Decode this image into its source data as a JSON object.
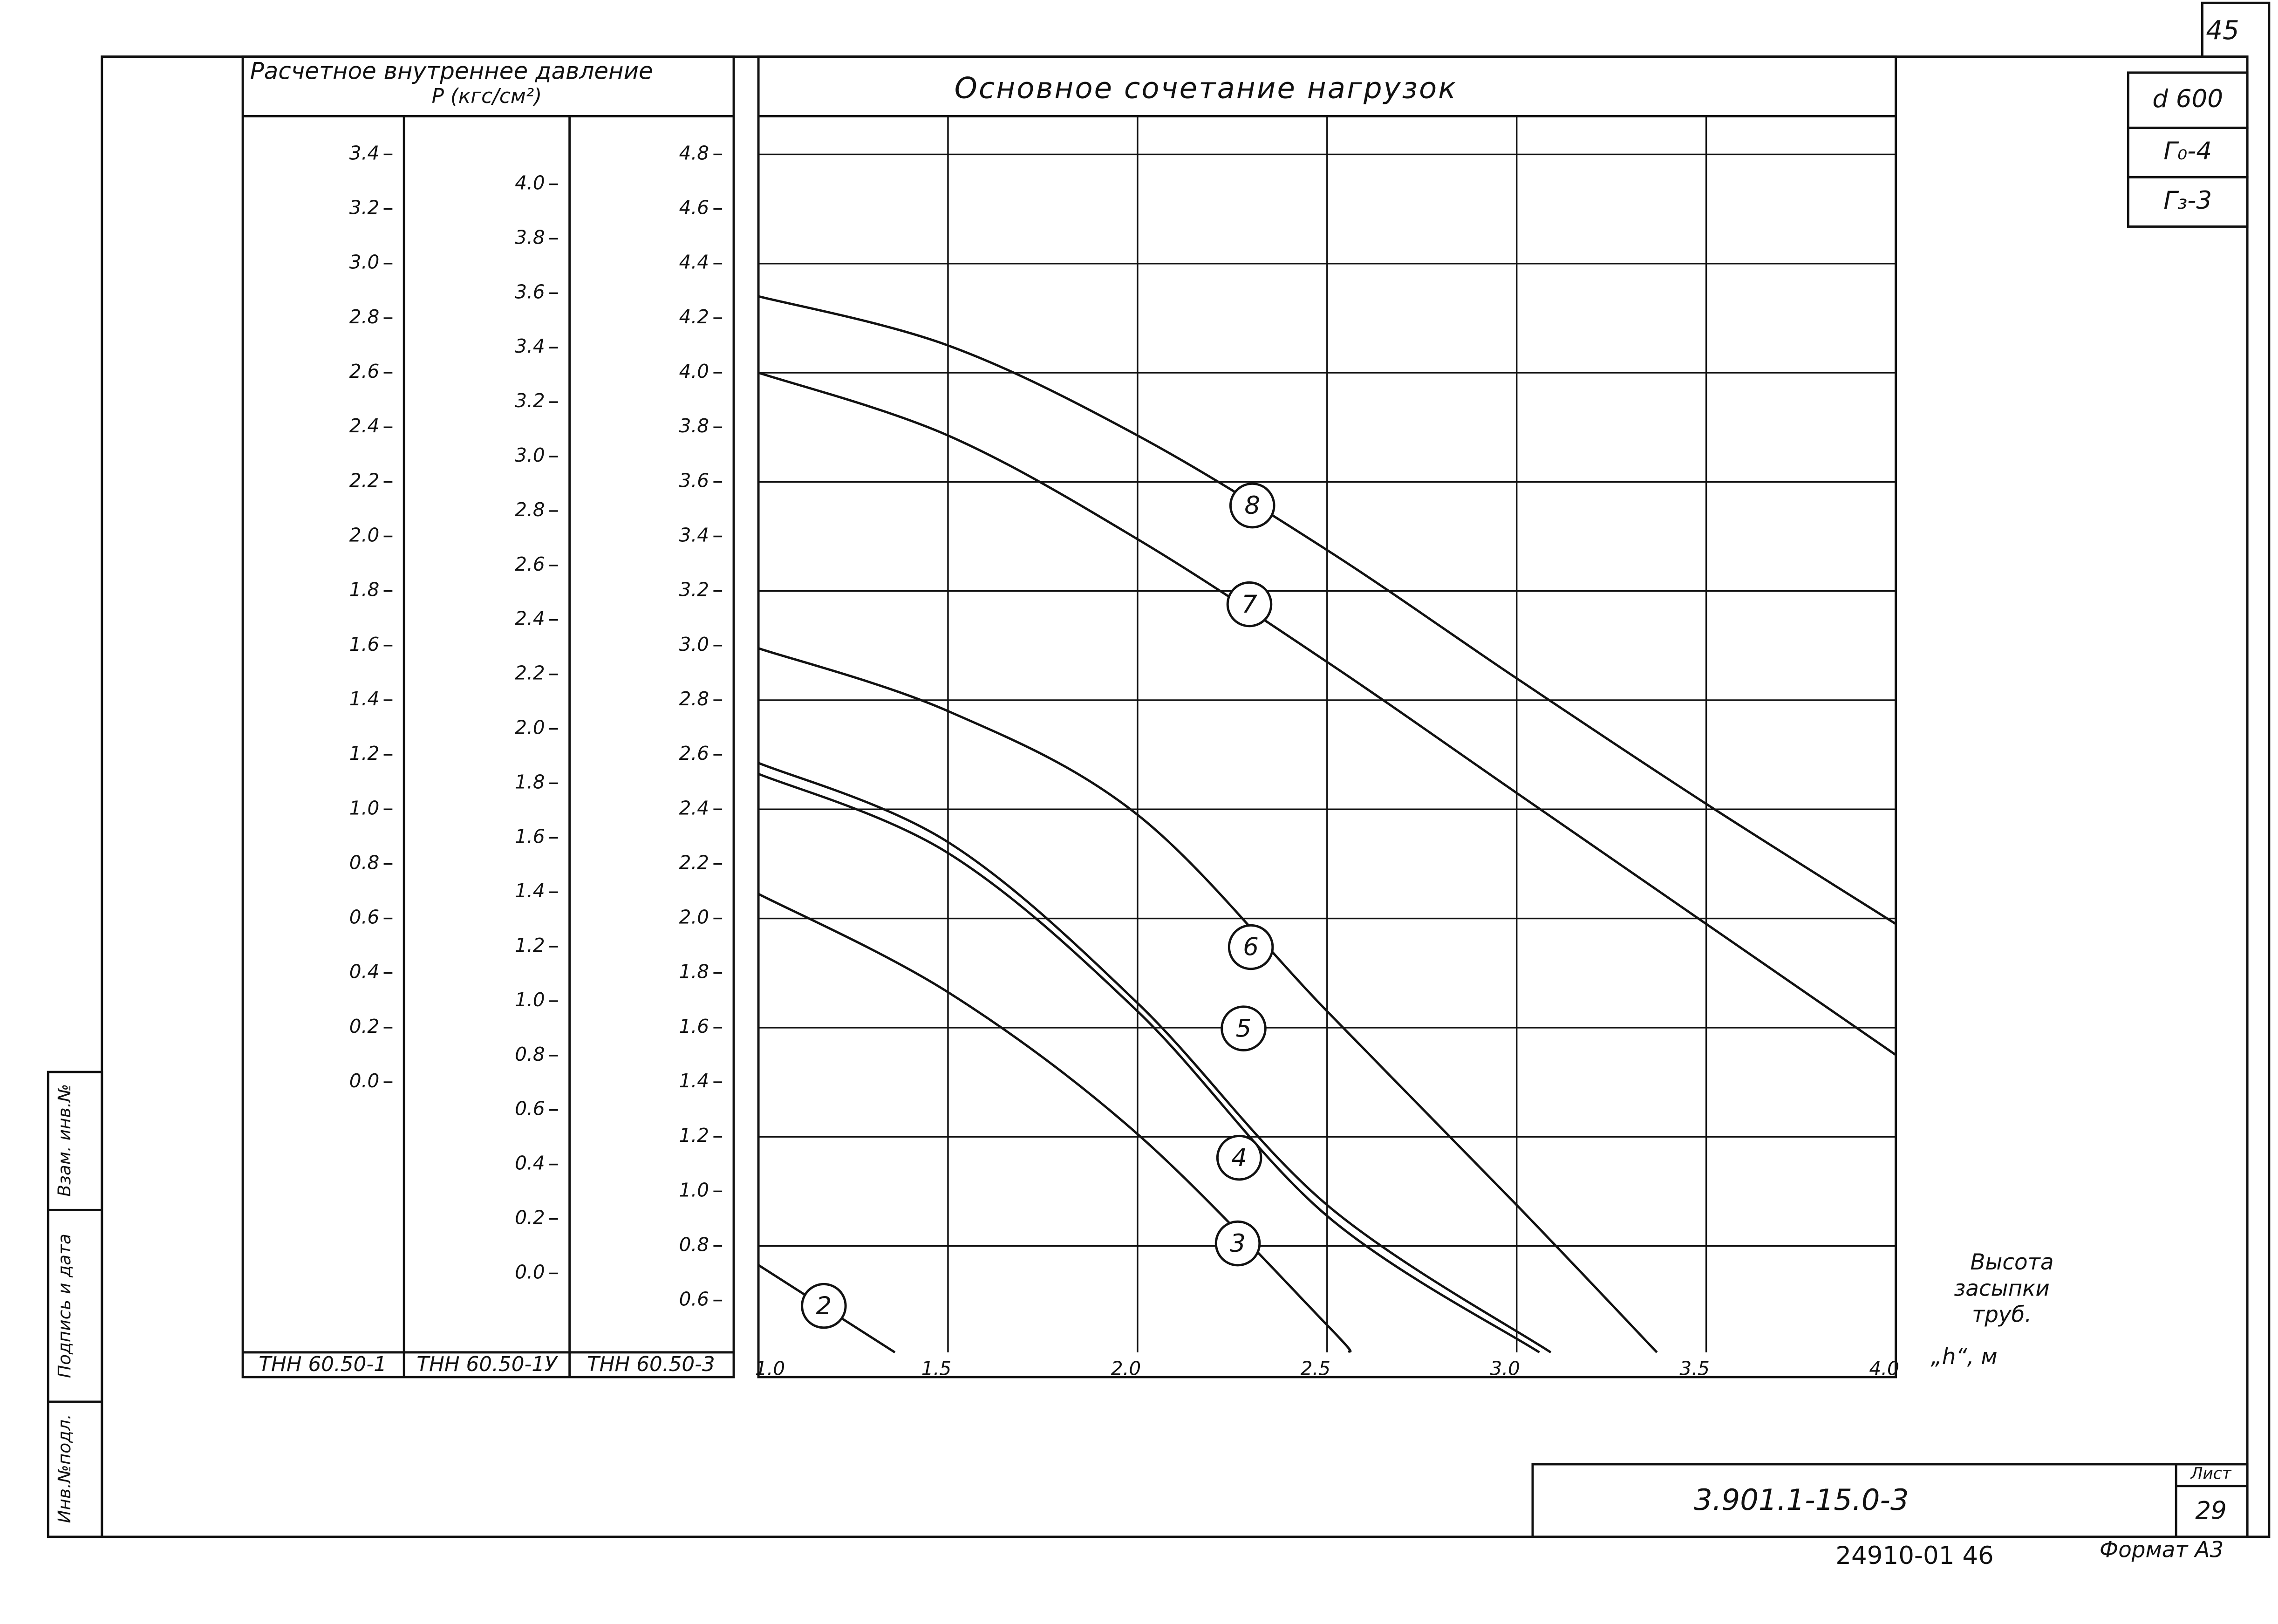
{
  "chart_data": {
    "type": "line",
    "title": "Основное сочетание нагрузок",
    "y_header": [
      "Расчетное внутреннее давление",
      "P (кгс/см²)"
    ],
    "x_label": [
      "Высота",
      "засыпки",
      "труб.",
      "„h“, м"
    ],
    "xlim": [
      1,
      4
    ],
    "xticks": [
      {
        "value": 1,
        "label": "1.0"
      },
      1.5,
      {
        "value": 2,
        "label": "2.0"
      },
      2.5,
      {
        "value": 3,
        "label": "3.0"
      },
      3.5,
      {
        "value": 4,
        "label": "4.0"
      }
    ],
    "ylim": [
      0.41,
      4.94
    ],
    "grid": true,
    "color": "#111111",
    "y_axes": [
      {
        "label": "ТНН 60.50-1",
        "ylim": [
          -0.99,
          3.54
        ],
        "yticks": [
          3.4,
          3.2,
          {
            "value": 3,
            "label": "3.0"
          },
          2.8,
          2.6,
          2.4,
          2.2,
          {
            "value": 2,
            "label": "2.0"
          },
          1.8,
          1.6,
          1.4,
          1.2,
          {
            "value": 1,
            "label": "1.0"
          },
          0.8,
          0.6,
          0.4,
          0.2,
          {
            "value": 0,
            "label": "0.0"
          }
        ]
      },
      {
        "label": "ТНН 60.50-1У",
        "ylim": [
          -0.29,
          4.25
        ],
        "yticks": [
          {
            "value": 4,
            "label": "4.0"
          },
          3.8,
          3.6,
          3.4,
          3.2,
          {
            "value": 3,
            "label": "3.0"
          },
          2.8,
          2.6,
          2.4,
          2.2,
          {
            "value": 2,
            "label": "2.0"
          },
          1.8,
          1.6,
          1.4,
          1.2,
          {
            "value": 1,
            "label": "1.0"
          },
          0.8,
          0.6,
          0.4,
          0.2,
          {
            "value": 0,
            "label": "0.0"
          }
        ]
      },
      {
        "label": "ТНН 60.50-3",
        "ylim": [
          0.41,
          4.94
        ],
        "yticks": [
          4.8,
          4.6,
          4.4,
          4.2,
          {
            "value": 4,
            "label": "4.0"
          },
          3.8,
          3.6,
          3.4,
          3.2,
          {
            "value": 3,
            "label": "3.0"
          },
          2.8,
          2.6,
          2.4,
          2.2,
          {
            "value": 2,
            "label": "2.0"
          },
          1.8,
          1.6,
          1.4,
          1.2,
          {
            "value": 1,
            "label": "1.0"
          },
          0.8,
          0.6
        ]
      }
    ],
    "series": [
      {
        "name": "8",
        "x": [
          1,
          1.5,
          2,
          2.5,
          3,
          3.5,
          4
        ],
        "values": [
          4.28,
          4.1,
          3.77,
          3.35,
          2.88,
          2.42,
          1.98
        ]
      },
      {
        "name": "7",
        "x": [
          1,
          1.5,
          2,
          2.5,
          3,
          3.5,
          4
        ],
        "values": [
          4.0,
          3.77,
          3.39,
          2.94,
          2.46,
          1.98,
          1.5
        ]
      },
      {
        "name": "6",
        "x": [
          1,
          1.5,
          2,
          2.5,
          3,
          3.37
        ],
        "values": [
          2.99,
          2.76,
          2.38,
          1.66,
          0.95,
          0.41
        ]
      },
      {
        "name": "5",
        "x": [
          1,
          1.5,
          2,
          2.5,
          3.09
        ],
        "values": [
          2.57,
          2.28,
          1.69,
          0.95,
          0.41
        ]
      },
      {
        "name": "4",
        "x": [
          1,
          1.5,
          2,
          2.5,
          3.06
        ],
        "values": [
          2.53,
          2.24,
          1.66,
          0.91,
          0.41
        ]
      },
      {
        "name": "3",
        "x": [
          1,
          1.5,
          2,
          2.5,
          2.56
        ],
        "values": [
          2.09,
          1.73,
          1.21,
          0.51,
          0.41
        ]
      },
      {
        "name": "2",
        "x": [
          1,
          1.36
        ],
        "values": [
          0.73,
          0.41
        ]
      }
    ]
  },
  "frame": {
    "page_number": "45",
    "params": [
      "d 600",
      "Г₀-4",
      "Г₃-3"
    ],
    "side_labels": [
      "Инв.№подл.",
      "Подпись и дата",
      "Взам. инв.№"
    ],
    "doc_code": "3.901.1-15.0-3",
    "sheet_label": "Лист",
    "sheet": "29",
    "archive": "24910-01  46",
    "format": "Формат А3"
  }
}
